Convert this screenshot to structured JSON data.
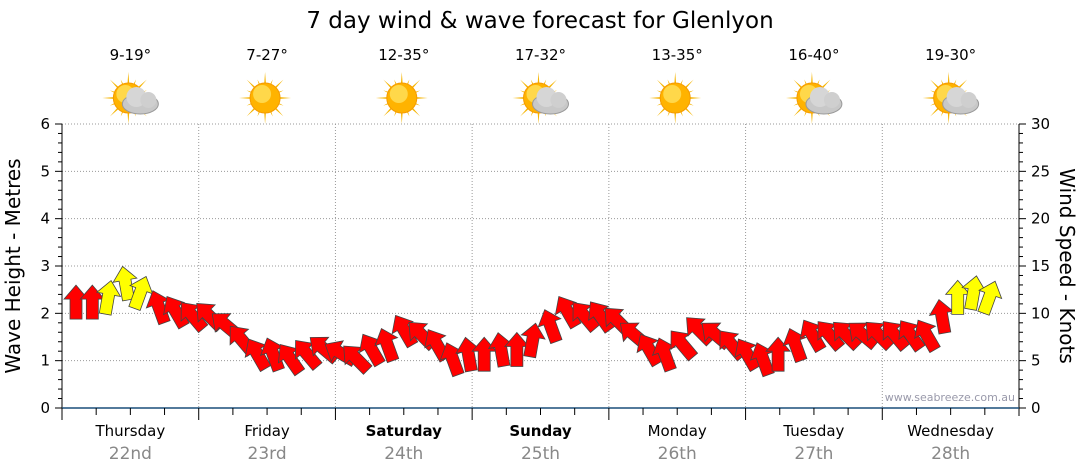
{
  "chart_data": {
    "type": "line",
    "title": "7 day wind & wave forecast for Glenlyon",
    "left_axis": {
      "label": "Wave Height - Metres",
      "range": [
        0,
        6
      ],
      "ticks": [
        "0",
        "1",
        "2",
        "3",
        "4",
        "5",
        "6"
      ]
    },
    "right_axis": {
      "label": "Wind Speed - Knots",
      "range": [
        0,
        30
      ],
      "ticks": [
        "0",
        "5",
        "10",
        "15",
        "20",
        "25",
        "30"
      ]
    },
    "days": [
      {
        "day": "Thursday",
        "date": "22nd",
        "temp": "9-19°",
        "icon": "sun-cloud-icon",
        "bold": false
      },
      {
        "day": "Friday",
        "date": "23rd",
        "temp": "7-27°",
        "icon": "sun-icon",
        "bold": false
      },
      {
        "day": "Saturday",
        "date": "24th",
        "temp": "12-35°",
        "icon": "sun-icon",
        "bold": true
      },
      {
        "day": "Sunday",
        "date": "25th",
        "temp": "17-32°",
        "icon": "sun-cloud-icon",
        "bold": true
      },
      {
        "day": "Monday",
        "date": "26th",
        "temp": "13-35°",
        "icon": "sun-icon",
        "bold": false
      },
      {
        "day": "Tuesday",
        "date": "27th",
        "temp": "16-40°",
        "icon": "sun-cloud-icon",
        "bold": false
      },
      {
        "day": "Wednesday",
        "date": "28th",
        "temp": "19-30°",
        "icon": "sun-cloud-icon",
        "bold": false
      }
    ],
    "hours_per_point": 3,
    "wind_knots": [
      11.5,
      11.5,
      12,
      13.5,
      12.5,
      11,
      10.5,
      10,
      10,
      9,
      7.5,
      6,
      6,
      5.5,
      6,
      6.5,
      6,
      5.5,
      6.5,
      7,
      8.5,
      8,
      7,
      5.5,
      6,
      6,
      6.5,
      6.5,
      7.5,
      9,
      10.5,
      10,
      10,
      9.5,
      8,
      6.5,
      6,
      7,
      8.5,
      8,
      7,
      6,
      5.5,
      6,
      7,
      8,
      8,
      8,
      8,
      8,
      8,
      8,
      8,
      10,
      12,
      12.5,
      12
    ],
    "wind_direction_deg": [
      0,
      0,
      10,
      -10,
      20,
      -20,
      -30,
      -40,
      -45,
      -50,
      -40,
      -30,
      -20,
      -35,
      -40,
      -50,
      -60,
      -45,
      -30,
      -20,
      -30,
      -45,
      -30,
      -20,
      -10,
      0,
      -10,
      0,
      10,
      -20,
      -30,
      -40,
      -35,
      -45,
      -50,
      -30,
      -20,
      -40,
      -45,
      -50,
      -40,
      -30,
      -20,
      0,
      -20,
      -30,
      -40,
      -45,
      -50,
      -45,
      -40,
      -35,
      -30,
      -10,
      0,
      10,
      20
    ],
    "arrow_colors": [
      "red",
      "red",
      "yellow",
      "yellow",
      "yellow",
      "red",
      "red",
      "red",
      "red",
      "red",
      "red",
      "red",
      "red",
      "red",
      "red",
      "red",
      "red",
      "red",
      "red",
      "red",
      "red",
      "red",
      "red",
      "red",
      "red",
      "red",
      "red",
      "red",
      "red",
      "red",
      "red",
      "red",
      "red",
      "red",
      "red",
      "red",
      "red",
      "red",
      "red",
      "red",
      "red",
      "red",
      "red",
      "red",
      "red",
      "red",
      "red",
      "red",
      "red",
      "red",
      "red",
      "red",
      "red",
      "red",
      "yellow",
      "yellow",
      "yellow"
    ],
    "colors": {
      "red": "#ff0000",
      "yellow": "#ffff00",
      "axis": "#1a4e7a"
    },
    "grid": true,
    "watermark": "www.seabreeze.com.au"
  }
}
